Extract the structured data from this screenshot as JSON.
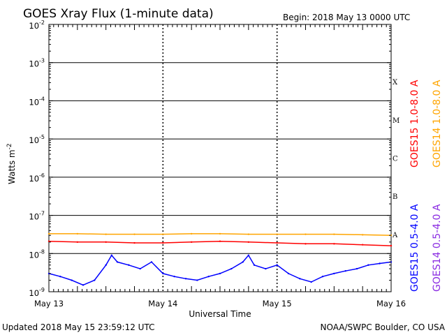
{
  "title": "GOES Xray Flux (1-minute data)",
  "begin_label": "Begin:  2018 May 13 0000 UTC",
  "footer_left": "Updated 2018 May 15 23:59:12 UTC",
  "footer_right": "NOAA/SWPC Boulder, CO USA",
  "chart_data": {
    "type": "line",
    "title": "GOES Xray Flux (1-minute data)",
    "xlabel": "Universal Time",
    "ylabel": "Watts m",
    "ylabel_sup": "-2",
    "yscale": "log",
    "ylim": [
      1e-09,
      0.01
    ],
    "xlim": [
      0,
      3
    ],
    "x_tick_labels": [
      "May 13",
      "May 14",
      "May 15",
      "May 16"
    ],
    "y_ticks": [
      {
        "base": "10",
        "exp": "-2"
      },
      {
        "base": "10",
        "exp": "-3"
      },
      {
        "base": "10",
        "exp": "-4"
      },
      {
        "base": "10",
        "exp": "-5"
      },
      {
        "base": "10",
        "exp": "-6"
      },
      {
        "base": "10",
        "exp": "-7"
      },
      {
        "base": "10",
        "exp": "-8"
      },
      {
        "base": "10",
        "exp": "-9"
      }
    ],
    "flare_classes": [
      "X",
      "M",
      "C",
      "B",
      "A"
    ],
    "grid": true,
    "series": [
      {
        "name": "GOES15 1.0-8.0 A",
        "color": "#ff0000",
        "x": [
          0,
          0.25,
          0.5,
          0.75,
          1.0,
          1.25,
          1.5,
          1.75,
          2.0,
          2.25,
          2.5,
          2.75,
          3.0
        ],
        "values": [
          2.1e-08,
          2e-08,
          2e-08,
          1.9e-08,
          1.9e-08,
          2e-08,
          2.1e-08,
          2e-08,
          1.9e-08,
          1.8e-08,
          1.8e-08,
          1.7e-08,
          1.6e-08
        ]
      },
      {
        "name": "GOES14 1.0-8.0 A",
        "color": "#ffa500",
        "x": [
          0,
          0.25,
          0.5,
          0.75,
          1.0,
          1.25,
          1.5,
          1.75,
          2.0,
          2.25,
          2.5,
          2.75,
          3.0
        ],
        "values": [
          3.3e-08,
          3.3e-08,
          3.2e-08,
          3.2e-08,
          3.2e-08,
          3.3e-08,
          3.3e-08,
          3.2e-08,
          3.2e-08,
          3.2e-08,
          3.2e-08,
          3.1e-08,
          3e-08
        ]
      },
      {
        "name": "GOES15 0.5-4.0 A",
        "color": "#0000ff",
        "x": [
          0,
          0.1,
          0.2,
          0.3,
          0.4,
          0.5,
          0.55,
          0.6,
          0.7,
          0.8,
          0.9,
          1.0,
          1.1,
          1.2,
          1.3,
          1.4,
          1.5,
          1.6,
          1.7,
          1.75,
          1.8,
          1.9,
          2.0,
          2.1,
          2.2,
          2.3,
          2.4,
          2.5,
          2.6,
          2.7,
          2.8,
          2.9,
          3.0
        ],
        "values": [
          3e-09,
          2.5e-09,
          2e-09,
          1.5e-09,
          2e-09,
          5e-09,
          9e-09,
          6e-09,
          5e-09,
          4e-09,
          6e-09,
          3e-09,
          2.5e-09,
          2.2e-09,
          2e-09,
          2.5e-09,
          3e-09,
          4e-09,
          6e-09,
          9e-09,
          5e-09,
          4e-09,
          5e-09,
          3e-09,
          2.2e-09,
          1.8e-09,
          2.5e-09,
          3e-09,
          3.5e-09,
          4e-09,
          5e-09,
          5.5e-09,
          6e-09
        ]
      },
      {
        "name": "GOES14 0.5-4.0 A",
        "color": "#8a2be2",
        "x": [],
        "values": []
      }
    ]
  }
}
